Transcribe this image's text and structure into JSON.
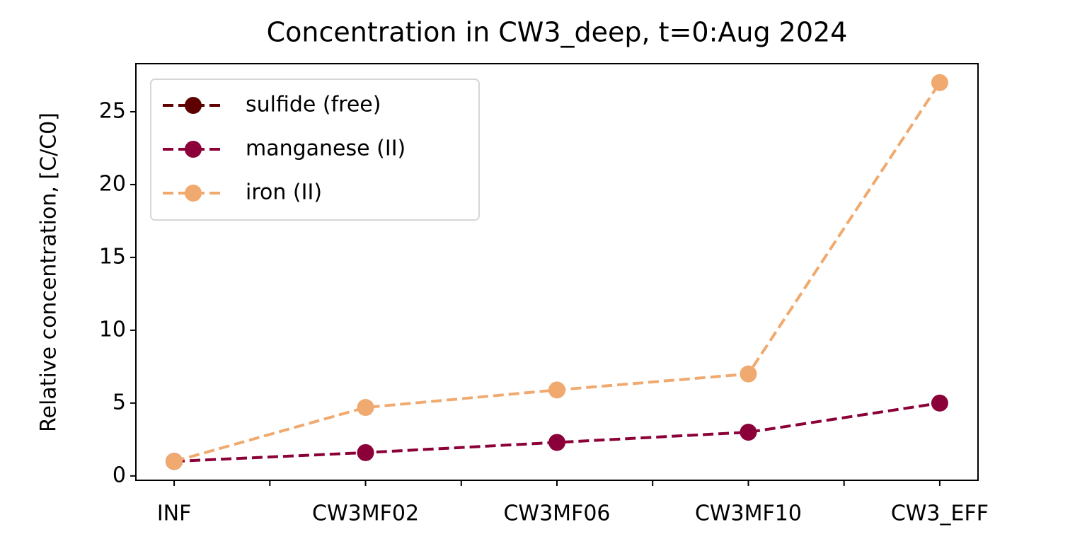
{
  "chart_data": {
    "type": "line",
    "title": "Concentration in CW3_deep, t=0:Aug 2024",
    "y_label": "Relative concentration, [C/C0]",
    "categories": [
      "INF",
      "CW3MF02",
      "CW3MF06",
      "CW3MF10",
      "CW3_EFF"
    ],
    "series": [
      {
        "name": "sulfide (free)",
        "color": "#5e0000",
        "values": [
          1,
          null,
          null,
          null,
          null
        ]
      },
      {
        "name": "manganese (II)",
        "color": "#8b0038",
        "values": [
          1,
          1.6,
          2.3,
          3.0,
          5.0
        ]
      },
      {
        "name": "iron (II)",
        "color": "#f0a96e",
        "values": [
          1,
          4.7,
          5.9,
          7.0,
          27.0
        ]
      }
    ],
    "ylim": [
      -0.3,
      28.3
    ],
    "yticks": [
      0,
      5,
      10,
      15,
      20,
      25
    ],
    "legend": "upper left",
    "grid": false
  }
}
